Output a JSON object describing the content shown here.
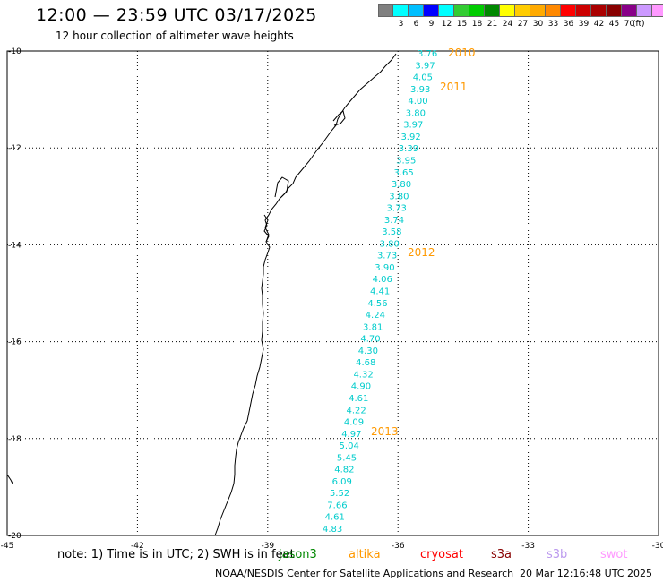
{
  "header": {
    "title": "12:00 — 23:59 UTC 03/17/2025",
    "subtitle": "12 hour collection of altimeter wave heights"
  },
  "legend": {
    "colors": [
      "#808080",
      "#00ffff",
      "#00bfff",
      "#0000ff",
      "#00ffff",
      "#33cc33",
      "#00cc00",
      "#008800",
      "#ffff00",
      "#ffcc00",
      "#ffaa00",
      "#ff8800",
      "#ff0000",
      "#cc0000",
      "#aa0000",
      "#880000",
      "#880088",
      "#cc99ff",
      "#ff99ff",
      "#000000"
    ],
    "labels": [
      "",
      "3",
      "6",
      "9",
      "12",
      "15",
      "18",
      "21",
      "24",
      "27",
      "30",
      "33",
      "36",
      "39",
      "42",
      "45",
      "70"
    ],
    "unit": "(ft)"
  },
  "map": {
    "lon_range": [
      -45,
      -30
    ],
    "lat_range": [
      -20,
      -10
    ],
    "lon_ticks": [
      "-45",
      "-42",
      "-39",
      "-36",
      "-33",
      "-30"
    ],
    "lat_ticks": [
      "-10",
      "-12",
      "-14",
      "-16",
      "-18",
      "-20"
    ],
    "track_color": "#00cccc",
    "year_color": "#ff9900",
    "wave_heights": [
      "3.76",
      "3.97",
      "4.05",
      "3.93",
      "4.00",
      "3.80",
      "3.97",
      "3.92",
      "3.39",
      "3.95",
      "3.65",
      "3.80",
      "3.80",
      "3.73",
      "3.74",
      "3.58",
      "3.80",
      "3.73",
      "3.90",
      "4.06",
      "4.41",
      "4.56",
      "4.24",
      "3.81",
      "4.70",
      "4.30",
      "4.68",
      "4.32",
      "4.90",
      "4.61",
      "4.22",
      "4.09",
      "4.97",
      "5.04",
      "5.45",
      "4.82",
      "6.09",
      "5.52",
      "7.66",
      "4.61",
      "4.83"
    ],
    "year_labels": [
      "2010",
      "2011",
      "2012",
      "2013"
    ]
  },
  "footer": {
    "note": "note: 1) Time is in UTC; 2) SWH is in feet",
    "missions": [
      {
        "name": "jason3",
        "color": "#008800"
      },
      {
        "name": "altika",
        "color": "#ff9900"
      },
      {
        "name": "cryosat",
        "color": "#ff0000"
      },
      {
        "name": "s3a",
        "color": "#880000"
      },
      {
        "name": "s3b",
        "color": "#bb99ee"
      },
      {
        "name": "swot",
        "color": "#ff99ff"
      }
    ],
    "credit": "NOAA/NESDIS Center for Satellite Applications and Research",
    "timestamp": "20 Mar 12:16:48 UTC 2025"
  }
}
